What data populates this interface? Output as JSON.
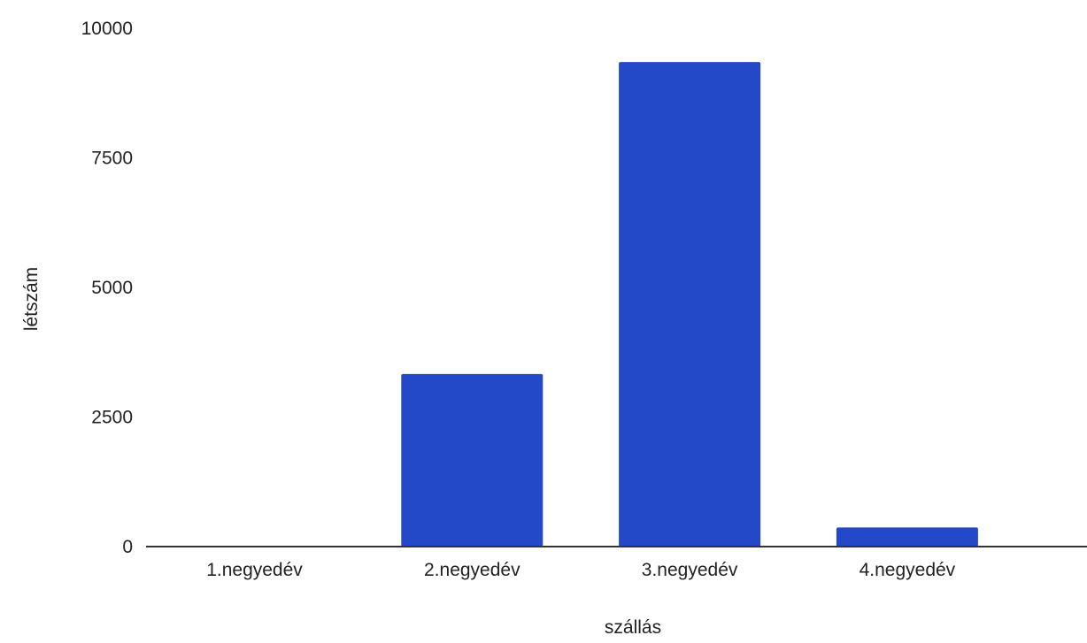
{
  "chart_data": {
    "type": "bar",
    "title": "",
    "xlabel": "szállás",
    "ylabel": "létszám",
    "categories": [
      "1.negyedév",
      "2.negyedév",
      "3.negyedév",
      "4.negyedév"
    ],
    "series": [
      {
        "values": [
          0,
          3330,
          9350,
          370
        ]
      }
    ],
    "ylim": [
      0,
      10000
    ],
    "yticks": [
      0,
      2500,
      5000,
      7500,
      10000
    ],
    "ytick_labels": [
      "0",
      "2500",
      "5000",
      "7500",
      "10000"
    ],
    "grid": false,
    "legend": "none",
    "colors": {
      "bar": "#2449c8",
      "axis": "#333333"
    }
  }
}
